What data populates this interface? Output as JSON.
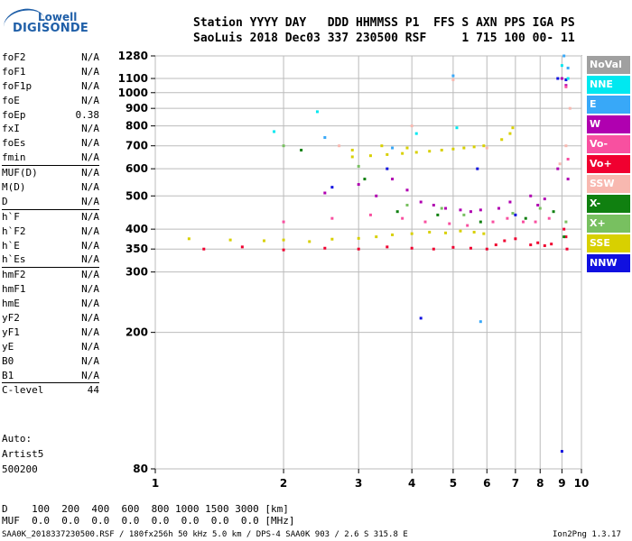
{
  "logo": {
    "line1": "Lowell",
    "line2": "DIGISONDE"
  },
  "header": {
    "row1": "Station YYYY DAY   DDD HHMMSS P1  FFS S AXN PPS IGA PS",
    "row2": "SaoLuis 2018 Dec03 337 230500 RSF     1 715 100 00- 11"
  },
  "params": {
    "group1": [
      {
        "k": "foF2",
        "v": "N/A"
      },
      {
        "k": "foF1",
        "v": "N/A"
      },
      {
        "k": "foF1p",
        "v": "N/A"
      },
      {
        "k": "foE",
        "v": "N/A"
      },
      {
        "k": "foEp",
        "v": "0.38"
      },
      {
        "k": "fxI",
        "v": "N/A"
      },
      {
        "k": "foEs",
        "v": "N/A"
      },
      {
        "k": "fmin",
        "v": "N/A"
      }
    ],
    "group2": [
      {
        "k": "MUF(D)",
        "v": "N/A"
      },
      {
        "k": "M(D)",
        "v": "N/A"
      },
      {
        "k": "D",
        "v": "N/A"
      }
    ],
    "group3": [
      {
        "k": "h`F",
        "v": "N/A"
      },
      {
        "k": "h`F2",
        "v": "N/A"
      },
      {
        "k": "h`E",
        "v": "N/A"
      },
      {
        "k": "h`Es",
        "v": "N/A"
      }
    ],
    "group4": [
      {
        "k": "hmF2",
        "v": "N/A"
      },
      {
        "k": "hmF1",
        "v": "N/A"
      },
      {
        "k": "hmE",
        "v": "N/A"
      },
      {
        "k": "yF2",
        "v": "N/A"
      },
      {
        "k": "yF1",
        "v": "N/A"
      },
      {
        "k": "yE",
        "v": "N/A"
      },
      {
        "k": "B0",
        "v": "N/A"
      },
      {
        "k": "B1",
        "v": "N/A"
      }
    ],
    "group5": [
      {
        "k": "C-level",
        "v": "44"
      }
    ]
  },
  "auto": {
    "line1": "Auto:",
    "line2": "Artist5",
    "line3": "500200"
  },
  "bottom": {
    "d_row": "D    100  200  400  600  800 1000 1500 3000 [km]",
    "muf_row": "MUF  0.0  0.0  0.0  0.0  0.0  0.0  0.0  0.0 [MHz]"
  },
  "footer": {
    "left": "SAA0K_2018337230500.RSF / 180fx256h 50 kHz 5.0 km / DPS-4 SAA0K 903 / 2.6 S 315.8 E",
    "right": "Ion2Png 1.3.17"
  },
  "legend": [
    {
      "label": "NoVal",
      "color": "#a0a0a0"
    },
    {
      "label": "NNE",
      "color": "#00e8f0"
    },
    {
      "label": "E",
      "color": "#38a8f8"
    },
    {
      "label": "W",
      "color": "#b000b0"
    },
    {
      "label": "Vo-",
      "color": "#f850a0"
    },
    {
      "label": "Vo+",
      "color": "#f00030"
    },
    {
      "label": "SSW",
      "color": "#f8b8b0"
    },
    {
      "label": "X-",
      "color": "#108010"
    },
    {
      "label": "X+",
      "color": "#78c060"
    },
    {
      "label": "SSE",
      "color": "#d8d000"
    },
    {
      "label": "NNW",
      "color": "#1010e0"
    }
  ],
  "chart_data": {
    "type": "scatter",
    "title": "",
    "xlabel": "",
    "ylabel": "",
    "x_scale": "log",
    "y_scale": "log",
    "xlim": [
      1,
      10
    ],
    "ylim": [
      80,
      1280
    ],
    "x_ticks": [
      1,
      2,
      3,
      4,
      5,
      6,
      7,
      8,
      9,
      10
    ],
    "y_ticks": [
      80,
      200,
      300,
      350,
      400,
      500,
      600,
      700,
      800,
      900,
      1000,
      1100,
      1280
    ],
    "grid": true,
    "legend_position": "right",
    "series": [
      {
        "name": "SSE",
        "color": "#d8d000",
        "points": [
          [
            1.2,
            375
          ],
          [
            1.5,
            372
          ],
          [
            1.8,
            370
          ],
          [
            2.0,
            372
          ],
          [
            2.3,
            368
          ],
          [
            2.6,
            374
          ],
          [
            3.0,
            376
          ],
          [
            3.3,
            380
          ],
          [
            3.6,
            385
          ],
          [
            4.0,
            388
          ],
          [
            4.4,
            392
          ],
          [
            4.8,
            390
          ],
          [
            5.2,
            395
          ],
          [
            5.6,
            392
          ],
          [
            5.9,
            388
          ],
          [
            2.9,
            650
          ],
          [
            3.2,
            655
          ],
          [
            3.5,
            660
          ],
          [
            3.8,
            665
          ],
          [
            4.1,
            670
          ],
          [
            4.4,
            675
          ],
          [
            4.7,
            680
          ],
          [
            5.0,
            685
          ],
          [
            5.3,
            690
          ],
          [
            5.6,
            695
          ],
          [
            5.9,
            700
          ],
          [
            6.5,
            730
          ],
          [
            6.8,
            760
          ],
          [
            6.9,
            790
          ],
          [
            2.9,
            680
          ],
          [
            3.4,
            700
          ],
          [
            3.9,
            690
          ]
        ]
      },
      {
        "name": "Vo+",
        "color": "#f00030",
        "points": [
          [
            1.3,
            350
          ],
          [
            1.6,
            355
          ],
          [
            2.0,
            348
          ],
          [
            2.5,
            352
          ],
          [
            3.0,
            350
          ],
          [
            3.5,
            355
          ],
          [
            4.0,
            352
          ],
          [
            4.5,
            350
          ],
          [
            5.0,
            354
          ],
          [
            5.5,
            352
          ],
          [
            6.0,
            350
          ],
          [
            6.3,
            360
          ],
          [
            6.6,
            370
          ],
          [
            7.0,
            375
          ],
          [
            7.6,
            360
          ],
          [
            7.9,
            365
          ],
          [
            8.2,
            358
          ],
          [
            8.5,
            362
          ],
          [
            9.1,
            400
          ],
          [
            9.2,
            380
          ],
          [
            9.25,
            350
          ]
        ]
      },
      {
        "name": "W",
        "color": "#b000b0",
        "points": [
          [
            2.5,
            510
          ],
          [
            3.0,
            540
          ],
          [
            3.3,
            500
          ],
          [
            3.6,
            560
          ],
          [
            3.9,
            520
          ],
          [
            4.2,
            480
          ],
          [
            4.5,
            470
          ],
          [
            4.8,
            460
          ],
          [
            5.2,
            455
          ],
          [
            5.5,
            450
          ],
          [
            5.8,
            455
          ],
          [
            6.4,
            460
          ],
          [
            6.8,
            480
          ],
          [
            7.6,
            500
          ],
          [
            7.9,
            470
          ],
          [
            8.2,
            490
          ],
          [
            8.8,
            600
          ],
          [
            9.0,
            1100
          ],
          [
            9.2,
            1050
          ],
          [
            9.3,
            560
          ]
        ]
      },
      {
        "name": "Vo-",
        "color": "#f850a0",
        "points": [
          [
            2.0,
            420
          ],
          [
            2.6,
            430
          ],
          [
            3.2,
            440
          ],
          [
            3.8,
            430
          ],
          [
            4.3,
            420
          ],
          [
            4.9,
            415
          ],
          [
            5.4,
            410
          ],
          [
            6.2,
            420
          ],
          [
            6.7,
            430
          ],
          [
            7.3,
            420
          ],
          [
            7.8,
            420
          ],
          [
            8.4,
            430
          ],
          [
            9.2,
            1040
          ],
          [
            9.3,
            640
          ]
        ]
      },
      {
        "name": "NNW",
        "color": "#1010e0",
        "points": [
          [
            2.6,
            530
          ],
          [
            3.5,
            600
          ],
          [
            4.2,
            220
          ],
          [
            5.7,
            600
          ],
          [
            7.0,
            440
          ],
          [
            8.8,
            1100
          ],
          [
            9.0,
            90
          ],
          [
            9.2,
            1090
          ]
        ]
      },
      {
        "name": "X-",
        "color": "#108010",
        "points": [
          [
            2.2,
            680
          ],
          [
            3.1,
            560
          ],
          [
            3.7,
            450
          ],
          [
            4.6,
            440
          ],
          [
            5.8,
            420
          ],
          [
            7.4,
            430
          ],
          [
            8.6,
            450
          ],
          [
            9.1,
            380
          ]
        ]
      },
      {
        "name": "X+",
        "color": "#78c060",
        "points": [
          [
            2.0,
            700
          ],
          [
            3.0,
            610
          ],
          [
            3.9,
            470
          ],
          [
            4.7,
            460
          ],
          [
            5.3,
            440
          ],
          [
            6.9,
            445
          ],
          [
            8.0,
            460
          ],
          [
            9.2,
            420
          ]
        ]
      },
      {
        "name": "NNE",
        "color": "#00e8f0",
        "points": [
          [
            1.9,
            770
          ],
          [
            2.4,
            880
          ],
          [
            4.1,
            760
          ],
          [
            5.1,
            790
          ],
          [
            9.0,
            1200
          ],
          [
            9.3,
            1100
          ]
        ]
      },
      {
        "name": "E",
        "color": "#38a8f8",
        "points": [
          [
            2.5,
            740
          ],
          [
            3.6,
            690
          ],
          [
            5.0,
            1120
          ],
          [
            5.8,
            215
          ],
          [
            9.1,
            1280
          ],
          [
            9.3,
            1180
          ]
        ]
      },
      {
        "name": "SSW",
        "color": "#f8b8b0",
        "points": [
          [
            2.7,
            700
          ],
          [
            4.0,
            800
          ],
          [
            5.0,
            1090
          ],
          [
            6.0,
            690
          ],
          [
            8.9,
            620
          ],
          [
            9.2,
            700
          ],
          [
            9.4,
            900
          ]
        ]
      }
    ]
  }
}
